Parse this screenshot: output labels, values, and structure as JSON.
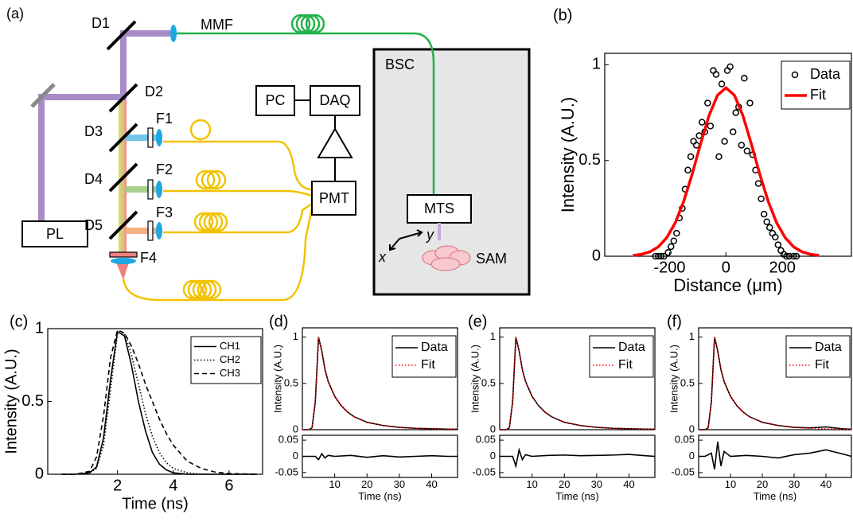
{
  "diagram": {
    "labels": [
      "(a)",
      "D1",
      "MMF",
      "BSC",
      "D2",
      "PC",
      "DAQ",
      "D3",
      "F1",
      "D4",
      "F2",
      "PMT",
      "MTS",
      "PL",
      "D5",
      "F3",
      "F4",
      "y",
      "x",
      "SAM"
    ]
  },
  "chart_data": [
    {
      "type": "scatter",
      "panel_label": "(b)",
      "x_label": "Distance (μm)",
      "y_label": "Intensity (A.U.)",
      "xlim": [
        -430,
        445
      ],
      "ylim": [
        0,
        1.06
      ],
      "xticks": [
        -200,
        0,
        200
      ],
      "yticks": [
        0,
        0.5,
        1
      ],
      "legend": "upper right",
      "series": [
        {
          "name": "Data",
          "color": "#000000",
          "mode": "markers",
          "x": [
            -250,
            -240,
            -230,
            -220,
            -205,
            -195,
            -185,
            -175,
            -165,
            -155,
            -145,
            -135,
            -125,
            -115,
            -105,
            -95,
            -85,
            -75,
            -65,
            -55,
            -45,
            -35,
            -25,
            -15,
            -5,
            5,
            15,
            25,
            35,
            45,
            55,
            65,
            75,
            85,
            95,
            105,
            115,
            125,
            135,
            145,
            155,
            165,
            175,
            185,
            195,
            205,
            215,
            225,
            240,
            250
          ],
          "values": [
            0,
            0,
            0,
            0,
            0.02,
            0.05,
            0.08,
            0.12,
            0.2,
            0.25,
            0.35,
            0.45,
            0.52,
            0.6,
            0.58,
            0.63,
            0.7,
            0.65,
            0.8,
            0.68,
            0.97,
            0.95,
            0.52,
            0.9,
            0.6,
            0.97,
            0.99,
            0.65,
            0.75,
            0.78,
            0.58,
            0.93,
            0.55,
            0.8,
            0.53,
            0.45,
            0.38,
            0.3,
            0.22,
            0.18,
            0.15,
            0.12,
            0.1,
            0.06,
            0.03,
            0.01,
            0,
            0,
            0,
            0
          ]
        },
        {
          "name": "Fit",
          "color": "#ff0000",
          "mode": "line",
          "dash": "solid",
          "x": [
            -330,
            -300,
            -270,
            -240,
            -210,
            -180,
            -150,
            -120,
            -90,
            -60,
            -30,
            0,
            30,
            60,
            90,
            120,
            150,
            180,
            210,
            240,
            270,
            300,
            330
          ],
          "values": [
            0.004,
            0.01,
            0.023,
            0.049,
            0.097,
            0.174,
            0.286,
            0.428,
            0.587,
            0.735,
            0.841,
            0.88,
            0.841,
            0.735,
            0.587,
            0.428,
            0.286,
            0.174,
            0.097,
            0.049,
            0.023,
            0.01,
            0.004
          ]
        }
      ]
    },
    {
      "type": "line",
      "panel_label": "(c)",
      "x_label": "Time (ns)",
      "y_label": "Intensity (A.U.)",
      "xlim": [
        -0.5,
        7.2
      ],
      "ylim": [
        0,
        1
      ],
      "xticks": [
        2,
        4,
        6
      ],
      "yticks": [
        0,
        0.5,
        1
      ],
      "legend": "upper right",
      "x": [
        0,
        0.5,
        1,
        1.25,
        1.5,
        1.75,
        2,
        2.25,
        2.5,
        2.75,
        3,
        3.25,
        3.5,
        3.75,
        4,
        4.5,
        5,
        5.5,
        6,
        7
      ],
      "series": [
        {
          "name": "CH1",
          "color": "#000000",
          "dash": "solid",
          "values": [
            0,
            0,
            0.01,
            0.05,
            0.25,
            0.65,
            0.98,
            0.95,
            0.75,
            0.5,
            0.3,
            0.15,
            0.07,
            0.03,
            0.01,
            0,
            0,
            0,
            0,
            0
          ]
        },
        {
          "name": "CH2",
          "color": "#000000",
          "dash": "dotted",
          "values": [
            0,
            0,
            0.01,
            0.04,
            0.2,
            0.58,
            0.97,
            0.97,
            0.82,
            0.62,
            0.42,
            0.26,
            0.15,
            0.08,
            0.04,
            0.01,
            0,
            0,
            0,
            0
          ]
        },
        {
          "name": "CH3",
          "color": "#000000",
          "dash": "dashed",
          "values": [
            0,
            0,
            0.02,
            0.12,
            0.4,
            0.8,
            0.99,
            0.97,
            0.88,
            0.76,
            0.62,
            0.5,
            0.38,
            0.28,
            0.2,
            0.09,
            0.04,
            0.015,
            0.005,
            0
          ]
        }
      ]
    },
    {
      "type": "line",
      "panel_label": "(d)",
      "y_label": "Intensity (A.U.)",
      "xlim": [
        0,
        48
      ],
      "ylim": [
        0,
        1.1
      ],
      "yticks": [
        0,
        0.5,
        1
      ],
      "legend": "upper right",
      "x": [
        0,
        2,
        3,
        4,
        5,
        6,
        7,
        8,
        10,
        12,
        14,
        16,
        18,
        20,
        25,
        30,
        35,
        40,
        45,
        48
      ],
      "series": [
        {
          "name": "Data",
          "color": "#000000",
          "dash": "solid",
          "values": [
            0,
            0,
            0.02,
            0.3,
            1.0,
            0.85,
            0.65,
            0.52,
            0.36,
            0.26,
            0.19,
            0.14,
            0.11,
            0.08,
            0.045,
            0.025,
            0.015,
            0.01,
            0.006,
            0.005
          ]
        },
        {
          "name": "Fit",
          "color": "#ff0000",
          "dash": "dotted",
          "values": [
            0,
            0,
            0.02,
            0.3,
            1.0,
            0.85,
            0.65,
            0.52,
            0.36,
            0.26,
            0.19,
            0.14,
            0.11,
            0.08,
            0.045,
            0.025,
            0.015,
            0.01,
            0.006,
            0.005
          ]
        }
      ]
    },
    {
      "type": "line",
      "x_label": "Time (ns)",
      "xlim": [
        0,
        48
      ],
      "ylim": [
        -0.065,
        0.065
      ],
      "xticks": [
        10,
        20,
        30,
        40
      ],
      "yticks": [
        0.05,
        0,
        -0.05
      ],
      "x": [
        0,
        2,
        4,
        5,
        6,
        7,
        8,
        10,
        15,
        20,
        25,
        30,
        35,
        40,
        45,
        48
      ],
      "color": "#000000",
      "values": [
        0,
        0,
        0,
        -0.01,
        0.008,
        -0.005,
        0.003,
        0,
        0.003,
        -0.003,
        0.002,
        -0.002,
        0,
        0.002,
        0,
        0
      ]
    },
    {
      "type": "line",
      "panel_label": "(e)",
      "y_label": "Intensity (A.U.)",
      "xlim": [
        0,
        48
      ],
      "ylim": [
        0,
        1.1
      ],
      "yticks": [
        0,
        0.5,
        1
      ],
      "legend": "upper right",
      "x": [
        0,
        2,
        3,
        4,
        5,
        6,
        7,
        8,
        10,
        12,
        14,
        16,
        18,
        20,
        25,
        30,
        35,
        40,
        45,
        48
      ],
      "series": [
        {
          "name": "Data",
          "color": "#000000",
          "dash": "solid",
          "values": [
            0,
            0,
            0.02,
            0.3,
            1.0,
            0.85,
            0.65,
            0.52,
            0.36,
            0.26,
            0.19,
            0.14,
            0.11,
            0.08,
            0.045,
            0.025,
            0.015,
            0.01,
            0.006,
            0.005
          ]
        },
        {
          "name": "Fit",
          "color": "#ff0000",
          "dash": "dotted",
          "values": [
            0,
            0,
            0.02,
            0.3,
            1.0,
            0.85,
            0.65,
            0.52,
            0.36,
            0.26,
            0.19,
            0.14,
            0.11,
            0.08,
            0.045,
            0.025,
            0.015,
            0.01,
            0.006,
            0.005
          ]
        }
      ]
    },
    {
      "type": "line",
      "x_label": "Time (ns)",
      "xlim": [
        0,
        48
      ],
      "ylim": [
        -0.065,
        0.065
      ],
      "xticks": [
        10,
        20,
        30,
        40
      ],
      "yticks": [
        0.05,
        0,
        -0.05
      ],
      "x": [
        0,
        2,
        4,
        5,
        6,
        7,
        8,
        10,
        15,
        20,
        25,
        30,
        35,
        40,
        45,
        48
      ],
      "color": "#000000",
      "values": [
        0,
        0,
        0,
        -0.03,
        0.02,
        -0.01,
        0.005,
        0,
        0.003,
        0.004,
        0.002,
        0.003,
        0.004,
        0.006,
        0.002,
        0
      ]
    },
    {
      "type": "line",
      "panel_label": "(f)",
      "y_label": "Intensity (A.U.)",
      "xlim": [
        0,
        48
      ],
      "ylim": [
        0,
        1.1
      ],
      "yticks": [
        0,
        0.5,
        1
      ],
      "legend": "upper right",
      "x": [
        0,
        2,
        3,
        4,
        5,
        6,
        7,
        8,
        10,
        12,
        14,
        16,
        18,
        20,
        25,
        30,
        35,
        40,
        45,
        48
      ],
      "series": [
        {
          "name": "Data",
          "color": "#000000",
          "dash": "solid",
          "values": [
            0,
            0,
            0.02,
            0.3,
            1.0,
            0.85,
            0.65,
            0.52,
            0.36,
            0.26,
            0.19,
            0.14,
            0.11,
            0.08,
            0.045,
            0.025,
            0.02,
            0.03,
            0.01,
            0.005
          ]
        },
        {
          "name": "Fit",
          "color": "#ff0000",
          "dash": "dotted",
          "values": [
            0,
            0,
            0.02,
            0.3,
            1.0,
            0.85,
            0.65,
            0.52,
            0.36,
            0.26,
            0.19,
            0.14,
            0.11,
            0.08,
            0.045,
            0.025,
            0.015,
            0.01,
            0.006,
            0.005
          ]
        }
      ]
    },
    {
      "type": "line",
      "x_label": "Time (ns)",
      "xlim": [
        0,
        48
      ],
      "ylim": [
        -0.065,
        0.065
      ],
      "xticks": [
        10,
        20,
        30,
        40
      ],
      "yticks": [
        0.05,
        0,
        -0.05
      ],
      "x": [
        0,
        2,
        4,
        5,
        6,
        7,
        8,
        10,
        15,
        20,
        25,
        30,
        35,
        40,
        45,
        48
      ],
      "color": "#000000",
      "values": [
        0,
        0,
        0.01,
        -0.04,
        0.045,
        -0.03,
        0.015,
        0,
        0.003,
        0,
        -0.005,
        0.005,
        0.01,
        0.02,
        0.008,
        0
      ]
    }
  ]
}
